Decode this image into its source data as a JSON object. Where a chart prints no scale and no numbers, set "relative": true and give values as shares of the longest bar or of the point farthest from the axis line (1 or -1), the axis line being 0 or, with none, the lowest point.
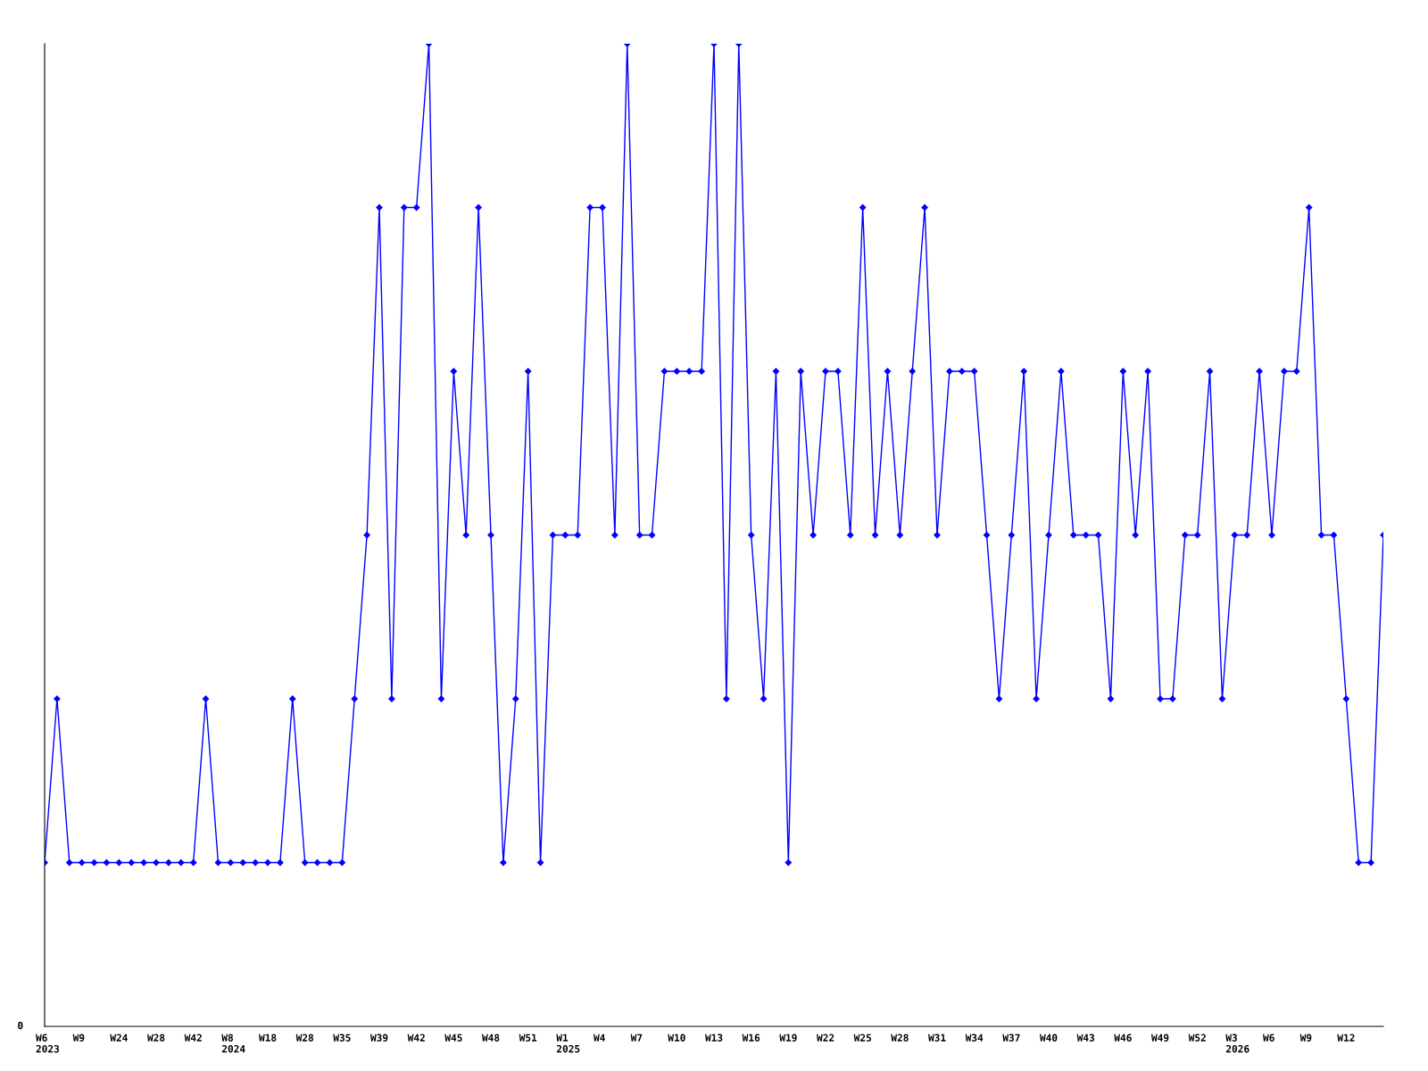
{
  "chart_data": {
    "type": "line",
    "relative": true,
    "marker": "diamond",
    "line_style": "solid",
    "grid": false,
    "legend": false,
    "annotations": [
      "0"
    ],
    "categories": [
      "W6\n2023",
      null,
      null,
      "W9",
      null,
      null,
      "W24",
      null,
      null,
      "W28",
      null,
      null,
      "W42",
      null,
      null,
      "W8\n2024",
      null,
      null,
      "W18",
      null,
      null,
      "W28",
      null,
      null,
      "W35",
      null,
      null,
      "W39",
      null,
      null,
      "W42",
      null,
      null,
      "W45",
      null,
      null,
      "W48",
      null,
      null,
      "W51",
      null,
      null,
      "W1\n2025",
      null,
      null,
      "W4",
      null,
      null,
      "W7",
      null,
      null,
      "W10",
      null,
      null,
      "W13",
      null,
      null,
      "W16",
      null,
      null,
      "W19",
      null,
      null,
      "W22",
      null,
      null,
      "W25",
      null,
      null,
      "W28",
      null,
      null,
      "W31",
      null,
      null,
      "W34",
      null,
      null,
      "W37",
      null,
      null,
      "W40",
      null,
      null,
      "W43",
      null,
      null,
      "W46",
      null,
      null,
      "W49",
      null,
      null,
      "W52",
      null,
      null,
      "W3\n2026",
      null,
      null,
      "W6",
      null,
      null,
      "W9",
      null,
      null,
      "W12",
      null,
      null,
      null
    ],
    "series": [
      {
        "color": "#0000ff",
        "values": [
          0.1667,
          0.3333,
          0.1667,
          0.1667,
          0.1667,
          0.1667,
          0.1667,
          0.1667,
          0.1667,
          0.1667,
          0.1667,
          0.1667,
          0.1667,
          0.3333,
          0.1667,
          0.1667,
          0.1667,
          0.1667,
          0.1667,
          0.1667,
          0.3333,
          0.1667,
          0.1667,
          0.1667,
          0.1667,
          0.3333,
          0.5,
          0.8333,
          0.3333,
          0.8333,
          0.8333,
          1,
          0.3333,
          0.6667,
          0.5,
          0.8333,
          0.5,
          0.1667,
          0.3333,
          0.6667,
          0.1667,
          0.5,
          0.5,
          0.5,
          0.8333,
          0.8333,
          0.5,
          1,
          0.5,
          0.5,
          0.6667,
          0.6667,
          0.6667,
          0.6667,
          1,
          0.3333,
          1,
          0.5,
          0.3333,
          0.6667,
          0.1667,
          0.6667,
          0.5,
          0.6667,
          0.6667,
          0.5,
          0.8333,
          0.5,
          0.6667,
          0.5,
          0.6667,
          0.8333,
          0.5,
          0.6667,
          0.6667,
          0.6667,
          0.5,
          0.3333,
          0.5,
          0.6667,
          0.3333,
          0.5,
          0.6667,
          0.5,
          0.5,
          0.5,
          0.3333,
          0.6667,
          0.5,
          0.6667,
          0.3333,
          0.3333,
          0.5,
          0.5,
          0.6667,
          0.3333,
          0.5,
          0.5,
          0.6667,
          0.5,
          0.6667,
          0.6667,
          0.8333,
          0.5,
          0.5,
          0.3333,
          0.1667,
          0.1667,
          0.5
        ]
      }
    ]
  }
}
